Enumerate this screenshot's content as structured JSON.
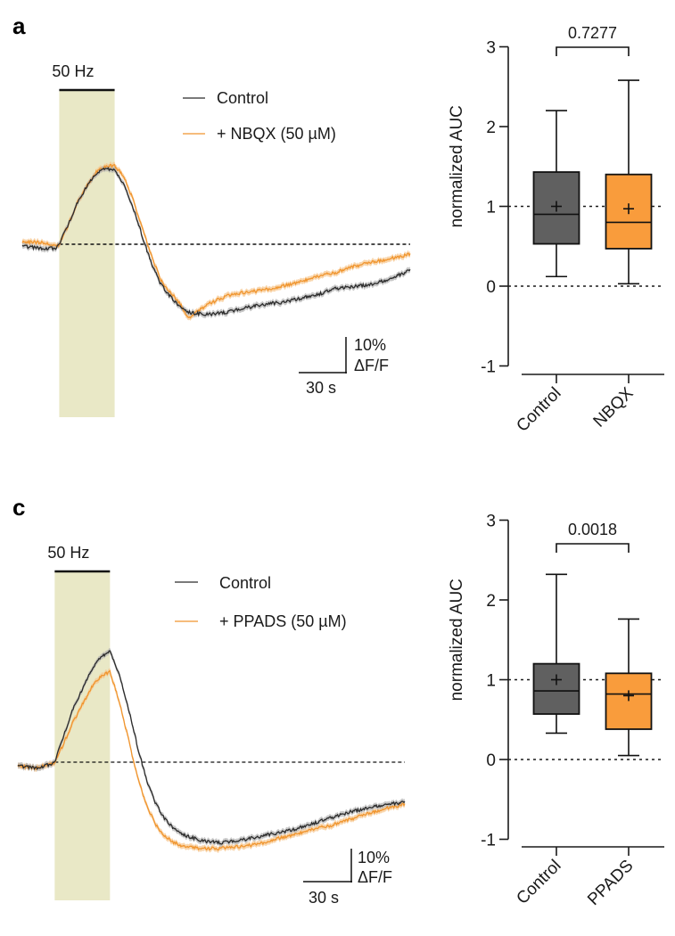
{
  "colors": {
    "control": "#2b2b2b",
    "control_band": "#b0b0b0",
    "treatment": "#f0952e",
    "treatment_band": "#f7c48a",
    "stim_shade": "#e9e8c6",
    "control_box": "#606060",
    "treatment_box": "#f99c3c",
    "axis": "#1a1a1a"
  },
  "chart_data": [
    {
      "id": "a-trace",
      "panel_label": "a",
      "type": "line",
      "stim_label": "50 Hz",
      "legend": [
        "Control",
        "+ NBQX (50 µM)"
      ],
      "legend_position": "top-right",
      "scale_bar": {
        "y_label_1": "10%",
        "y_label_2": "ΔF/F",
        "x_label": "30 s",
        "y_value_percent": 10,
        "x_value_s": 30
      },
      "stim_window_s": [
        0,
        30
      ],
      "xlim_s": [
        -20,
        190
      ],
      "ylim_percent_dFF": [
        -22,
        26
      ],
      "baseline_percent": 0,
      "series": [
        {
          "name": "Control",
          "x_s": [
            -20,
            -10,
            -2,
            0,
            5,
            10,
            15,
            20,
            25,
            30,
            35,
            40,
            45,
            50,
            55,
            60,
            65,
            70,
            80,
            90,
            100,
            110,
            120,
            130,
            140,
            150,
            160,
            170,
            180,
            190
          ],
          "y": [
            -0.5,
            -1,
            -1,
            0,
            5,
            10.5,
            14.5,
            17.5,
            19,
            18.5,
            15,
            9,
            2,
            -5,
            -10,
            -13,
            -15.5,
            -17,
            -17.5,
            -17,
            -16,
            -15,
            -14.5,
            -13.5,
            -12.5,
            -11,
            -10.5,
            -10,
            -8.5,
            -6.5
          ]
        },
        {
          "name": "+ NBQX (50 µM)",
          "x_s": [
            -20,
            -10,
            -2,
            0,
            5,
            10,
            15,
            20,
            25,
            30,
            35,
            40,
            45,
            50,
            55,
            60,
            65,
            70,
            80,
            90,
            100,
            110,
            120,
            130,
            140,
            150,
            160,
            170,
            180,
            190
          ],
          "y": [
            0.5,
            0.5,
            -0.5,
            0,
            5,
            10.5,
            14.5,
            18,
            19.5,
            19.5,
            17,
            11,
            4,
            -3,
            -9,
            -12,
            -14.5,
            -18.5,
            -15,
            -13,
            -12,
            -11.5,
            -10.5,
            -9.5,
            -8,
            -7,
            -5.5,
            -4.5,
            -3.5,
            -2.5
          ]
        }
      ]
    },
    {
      "id": "a-box",
      "type": "box",
      "ylabel": "normalized AUC",
      "ylim": [
        -1,
        3
      ],
      "yticks": [
        -1,
        0,
        1,
        2,
        3
      ],
      "reference_lines": [
        0,
        1
      ],
      "p_value": "0.7277",
      "categories": [
        "Control",
        "NBQX"
      ],
      "boxes": [
        {
          "name": "Control",
          "whisker_low": 0.12,
          "q1": 0.53,
          "median": 0.9,
          "q3": 1.43,
          "whisker_high": 2.2,
          "mean": 1.0
        },
        {
          "name": "NBQX",
          "whisker_low": 0.03,
          "q1": 0.47,
          "median": 0.8,
          "q3": 1.4,
          "whisker_high": 2.58,
          "mean": 0.97
        }
      ]
    },
    {
      "id": "c-trace",
      "panel_label": "c",
      "type": "line",
      "stim_label": "50 Hz",
      "legend": [
        "Control",
        "+ PPADS (50 µM)"
      ],
      "legend_position": "top-right",
      "scale_bar": {
        "y_label_1": "10%",
        "y_label_2": "ΔF/F",
        "x_label": "30 s",
        "y_value_percent": 10,
        "x_value_s": 30
      },
      "stim_window_s": [
        0,
        30
      ],
      "xlim_s": [
        -20,
        190
      ],
      "ylim_percent_dFF": [
        -24,
        36
      ],
      "baseline_percent": 0,
      "series": [
        {
          "name": "Control",
          "x_s": [
            -20,
            -10,
            -2,
            0,
            5,
            10,
            15,
            20,
            25,
            30,
            35,
            40,
            45,
            50,
            55,
            60,
            65,
            70,
            80,
            90,
            100,
            110,
            120,
            130,
            140,
            150,
            160,
            170,
            180,
            190
          ],
          "y": [
            -1,
            -1.5,
            -0.5,
            0,
            7,
            14,
            19,
            24,
            27.5,
            29,
            23,
            14,
            4,
            -5,
            -11,
            -15,
            -17.5,
            -19,
            -20.5,
            -21,
            -20.5,
            -19.5,
            -18.5,
            -17.5,
            -16,
            -14.5,
            -13,
            -12,
            -11,
            -10.5
          ]
        },
        {
          "name": "+ PPADS (50 µM)",
          "x_s": [
            -20,
            -10,
            -2,
            0,
            5,
            10,
            15,
            20,
            25,
            30,
            35,
            40,
            45,
            50,
            55,
            60,
            65,
            70,
            80,
            90,
            100,
            110,
            120,
            130,
            140,
            150,
            160,
            170,
            180,
            190
          ],
          "y": [
            -1,
            -1.5,
            -0.5,
            0,
            5,
            10.5,
            15,
            19.5,
            22.5,
            23.5,
            16,
            6,
            -4,
            -11.5,
            -16.5,
            -19.5,
            -21,
            -22,
            -22.5,
            -22.5,
            -22,
            -21.5,
            -20,
            -19,
            -17.5,
            -16.5,
            -15,
            -13.5,
            -12,
            -11
          ]
        }
      ]
    },
    {
      "id": "c-box",
      "type": "box",
      "ylabel": "normalized AUC",
      "ylim": [
        -1,
        3
      ],
      "yticks": [
        -1,
        0,
        1,
        2,
        3
      ],
      "reference_lines": [
        0,
        1
      ],
      "p_value": "0.0018",
      "categories": [
        "Control",
        "PPADS"
      ],
      "boxes": [
        {
          "name": "Control",
          "whisker_low": 0.33,
          "q1": 0.57,
          "median": 0.86,
          "q3": 1.2,
          "whisker_high": 2.32,
          "mean": 1.0
        },
        {
          "name": "PPADS",
          "whisker_low": 0.05,
          "q1": 0.38,
          "median": 0.82,
          "q3": 1.08,
          "whisker_high": 1.76,
          "mean": 0.8
        }
      ]
    }
  ]
}
